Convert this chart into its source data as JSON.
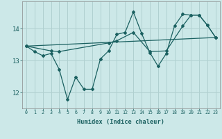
{
  "xlabel": "Humidex (Indice chaleur)",
  "background_color": "#cce8e8",
  "grid_color": "#b0d0d0",
  "line_color": "#1a6060",
  "xlim": [
    -0.5,
    23.5
  ],
  "ylim": [
    11.5,
    14.85
  ],
  "xticks": [
    0,
    1,
    2,
    3,
    4,
    5,
    6,
    7,
    8,
    9,
    10,
    11,
    12,
    13,
    14,
    15,
    16,
    17,
    18,
    19,
    20,
    21,
    22,
    23
  ],
  "yticks": [
    12,
    13,
    14
  ],
  "line1_x": [
    0,
    1,
    2,
    3,
    4,
    5,
    6,
    7,
    8,
    9,
    10,
    11,
    12,
    13,
    14,
    15,
    16,
    17,
    18,
    19,
    20,
    21,
    22,
    23
  ],
  "line1_y": [
    13.45,
    13.28,
    13.15,
    13.22,
    12.72,
    11.78,
    12.48,
    12.1,
    12.1,
    13.05,
    13.3,
    13.82,
    13.88,
    14.52,
    13.85,
    13.25,
    12.82,
    13.22,
    14.08,
    14.45,
    14.42,
    14.42,
    14.1,
    13.72
  ],
  "line2_x": [
    0,
    3,
    4,
    10,
    11,
    13,
    15,
    17,
    19,
    20,
    21,
    22,
    23
  ],
  "line2_y": [
    13.45,
    13.3,
    13.28,
    13.55,
    13.62,
    13.88,
    13.28,
    13.3,
    14.08,
    14.42,
    14.42,
    14.1,
    13.72
  ],
  "line3_x": [
    0,
    23
  ],
  "line3_y": [
    13.45,
    13.72
  ]
}
